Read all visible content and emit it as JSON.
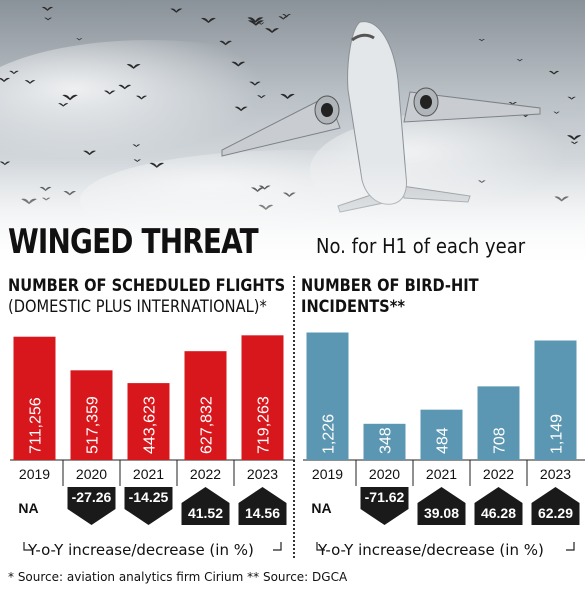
{
  "header": {
    "title": "WINGED THREAT",
    "note": "No. for H1 of each year"
  },
  "colors": {
    "flights_bar": "#d7171c",
    "birdhit_bar": "#5b97b2",
    "arrow_fill": "#1a1a1a",
    "text": "#111111"
  },
  "footnote": "* Source: aviation analytics firm Cirium ** Source: DGCA",
  "chart_data": [
    {
      "type": "bar",
      "title_line1": "NUMBER OF SCHEDULED FLIGHTS",
      "title_line2": "(DOMESTIC PLUS INTERNATIONAL)*",
      "categories": [
        "2019",
        "2020",
        "2021",
        "2022",
        "2023"
      ],
      "values": [
        711256,
        517359,
        443623,
        627832,
        719263
      ],
      "value_labels": [
        "711,256",
        "517,359",
        "443,623",
        "627,832",
        "719,263"
      ],
      "yoy_change": [
        null,
        -27.26,
        -14.25,
        41.52,
        14.56
      ],
      "yoy_labels": [
        "NA",
        "-27.26",
        "-14.25",
        "41.52",
        "14.56"
      ],
      "yoy_caption": "Y-o-Y increase/decrease (in %)",
      "bar_color": "#d7171c",
      "ylim": [
        0,
        750000
      ]
    },
    {
      "type": "bar",
      "title_line1": "NUMBER OF BIRD-HIT",
      "title_line2": "INCIDENTS**",
      "categories": [
        "2019",
        "2020",
        "2021",
        "2022",
        "2023"
      ],
      "values": [
        1226,
        348,
        484,
        708,
        1149
      ],
      "value_labels": [
        "1,226",
        "348",
        "484",
        "708",
        "1,149"
      ],
      "yoy_change": [
        null,
        -71.62,
        39.08,
        46.28,
        62.29
      ],
      "yoy_labels": [
        "NA",
        "-71.62",
        "39.08",
        "46.28",
        "62.29"
      ],
      "yoy_caption": "Y-o-Y increase/decrease (in %)",
      "bar_color": "#5b97b2",
      "ylim": [
        0,
        1250
      ]
    }
  ]
}
